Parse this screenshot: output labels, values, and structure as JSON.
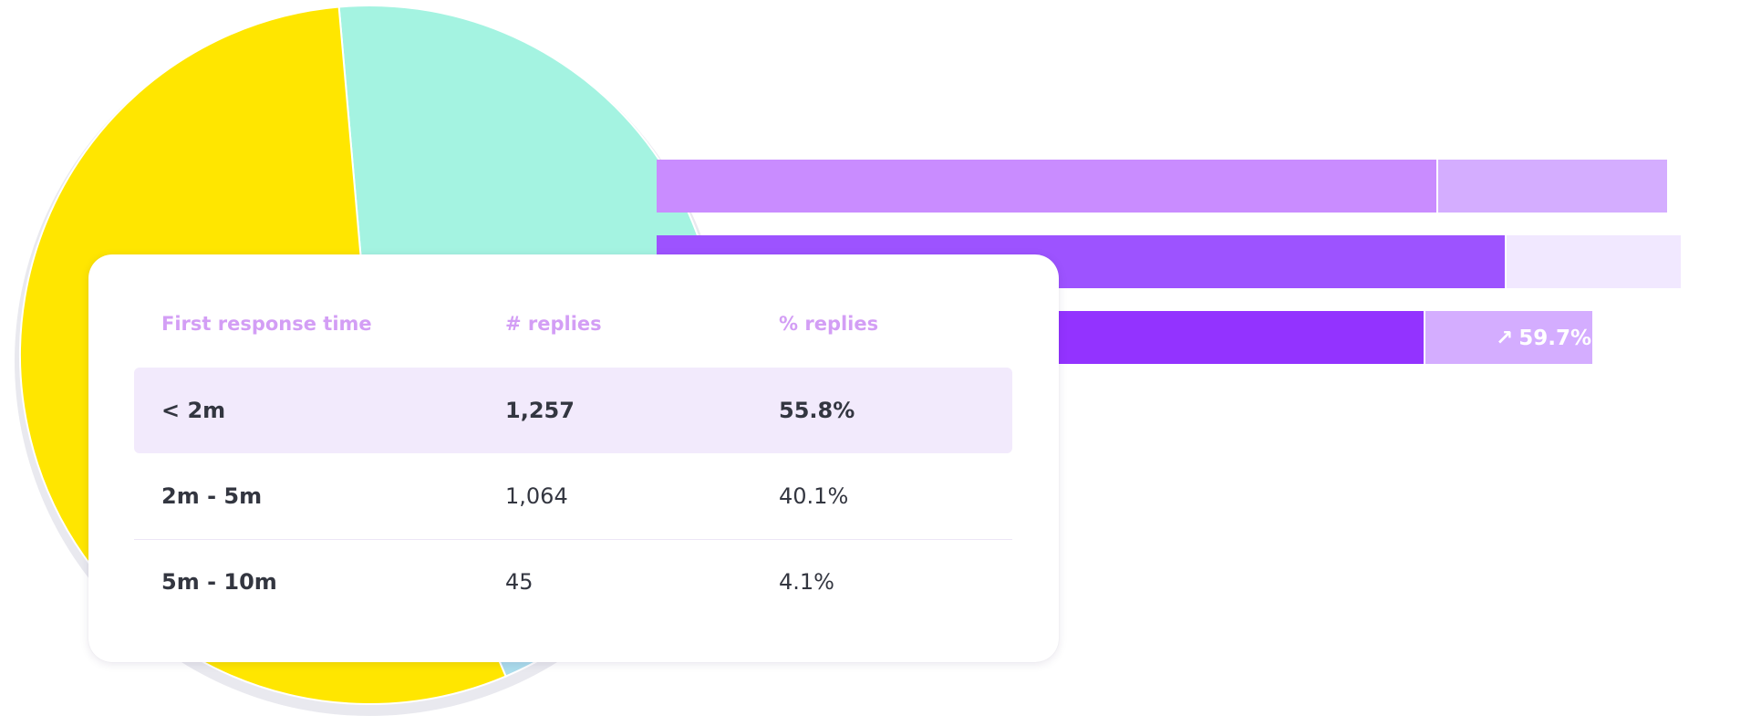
{
  "chart_data": [
    {
      "type": "pie",
      "slices": [
        {
          "value": 33,
          "color": "#a4f3e1"
        },
        {
          "value": 12,
          "color": "#abdcec"
        },
        {
          "value": 55,
          "color": "#ffe600"
        }
      ]
    },
    {
      "type": "bar",
      "orientation": "horizontal",
      "series": [
        {
          "values": [
            855,
            930,
            841
          ],
          "colors": [
            "#c98cff",
            "#9d53ff",
            "#9333ff"
          ]
        },
        {
          "values": [
            251,
            191,
            183
          ],
          "colors": [
            "#d4adff",
            "#f1e8ff",
            "#d4adff"
          ]
        }
      ],
      "annotation": {
        "arrow": "↗",
        "text": "59.7%",
        "bar_index": 2
      }
    }
  ],
  "table": {
    "columns": [
      "First response time",
      "# replies",
      "% replies"
    ],
    "rows": [
      {
        "range": "< 2m",
        "replies": "1,257",
        "percent": "55.8%"
      },
      {
        "range": "2m - 5m",
        "replies": "1,064",
        "percent": "40.1%"
      },
      {
        "range": "5m - 10m",
        "replies": "45",
        "percent": "4.1%"
      }
    ]
  }
}
